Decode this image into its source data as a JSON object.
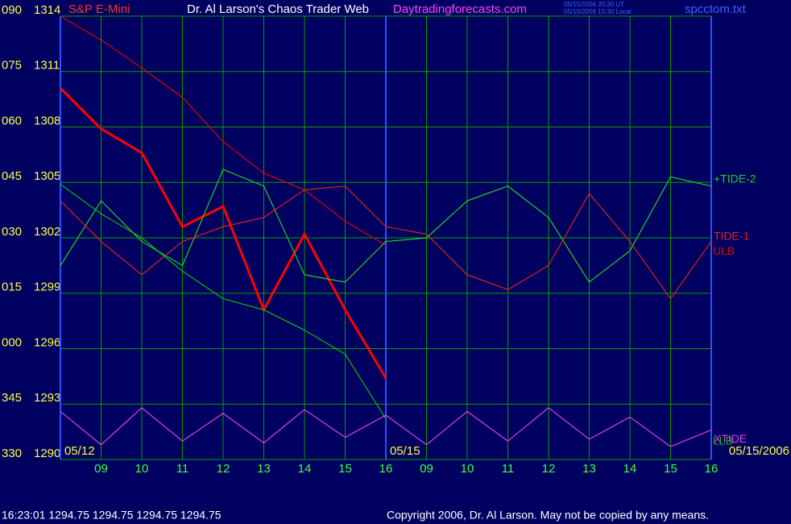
{
  "chart_data": {
    "type": "line",
    "title": "Dr. Al Larson's Chaos Trader Web",
    "site": "Daytradingforecasts.com",
    "instrument": "S&P E-Mini",
    "file": "spcctom.txt",
    "stamp_ut": "05/15/2006 20:30 UT",
    "stamp_local": "05/15/2006 15:30 Local",
    "status": "16:23:01  1294.75 1294.75 1294.75 1294.75",
    "copyright": "Copyright 2006, Dr. Al Larson. May not be copied by any means.",
    "dates": [
      {
        "value": 8,
        "label": "05/12"
      },
      {
        "value": 16,
        "label": "05/15"
      },
      {
        "value": 24,
        "label": "05/15/2006"
      }
    ],
    "x": [
      8,
      9,
      10,
      11,
      12,
      13,
      14,
      15,
      16,
      17,
      18,
      19,
      20,
      21,
      22,
      23,
      24
    ],
    "xlim": [
      8,
      24
    ],
    "xticks": [
      {
        "value": 9,
        "label": "09"
      },
      10,
      11,
      12,
      13,
      14,
      15,
      16,
      {
        "value": 17,
        "label": "09"
      },
      {
        "value": 18,
        "label": "10"
      },
      {
        "value": 19,
        "label": "11"
      },
      {
        "value": 20,
        "label": "12"
      },
      {
        "value": 21,
        "label": "13"
      },
      {
        "value": 22,
        "label": "14"
      },
      {
        "value": 23,
        "label": "15"
      },
      {
        "value": 24,
        "label": "16"
      }
    ],
    "ylim": [
      1290,
      1314
    ],
    "yticks": [
      1290,
      1293,
      1296,
      1299,
      1302,
      1305,
      1308,
      1311,
      1314
    ],
    "y2lim": [
      330,
      450
    ],
    "y2ticks": [
      330,
      345,
      {
        "value": 360,
        "label": "000"
      },
      {
        "value": 375,
        "label": "015"
      },
      {
        "value": 390,
        "label": "030"
      },
      {
        "value": 405,
        "label": "045"
      },
      {
        "value": 420,
        "label": "060"
      },
      {
        "value": 435,
        "label": "075"
      },
      {
        "value": 450,
        "label": "090"
      }
    ],
    "grid": true,
    "series": [
      {
        "color": "#ff0000",
        "values": [
          1310.1,
          1307.9,
          1306.6,
          1302.6,
          1303.7,
          1298.1,
          1302.2,
          1298.1,
          1294.4,
          null,
          null,
          null,
          null,
          null,
          null,
          null,
          null
        ]
      },
      {
        "name": "ULB",
        "color": "#e00000",
        "values": [
          1314,
          1312.7,
          1311.2,
          1309.6,
          1307.2,
          1305.5,
          1304.6,
          1302.9,
          1301.6,
          null,
          null,
          null,
          null,
          null,
          null,
          null,
          null
        ]
      },
      {
        "name": "LLB",
        "color": "#00c000",
        "values": [
          1304.9,
          1303.3,
          1302.0,
          1300.2,
          1298.7,
          1298.1,
          1297.0,
          1295.7,
          1292.2,
          null,
          null,
          null,
          null,
          null,
          null,
          null,
          null
        ]
      },
      {
        "name": "+TIDE-2",
        "color": "#20d020",
        "values": [
          1300.5,
          1304.0,
          1301.8,
          1300.5,
          1305.7,
          1304.8,
          1300.0,
          1299.6,
          1301.8,
          1302.0,
          1304.0,
          1304.8,
          1303.1,
          1299.6,
          1301.3,
          1305.3,
          1304.8
        ]
      },
      {
        "name": "TIDE-1",
        "color": "#e02020",
        "values": [
          1304.0,
          1301.8,
          1300.0,
          1301.8,
          1302.6,
          1303.1,
          1304.6,
          1304.8,
          1302.6,
          1302.2,
          1300.0,
          1299.2,
          1300.5,
          1304.4,
          1301.8,
          1298.7,
          1301.8
        ]
      },
      {
        "name": "XTIDE",
        "color": "#e040e0",
        "values": [
          1292.6,
          1290.8,
          1292.8,
          1291.0,
          1292.5,
          1290.9,
          1292.7,
          1291.2,
          1292.4,
          1290.8,
          1292.6,
          1291.0,
          1292.8,
          1291.1,
          1292.3,
          1290.7,
          1291.6
        ]
      }
    ]
  }
}
